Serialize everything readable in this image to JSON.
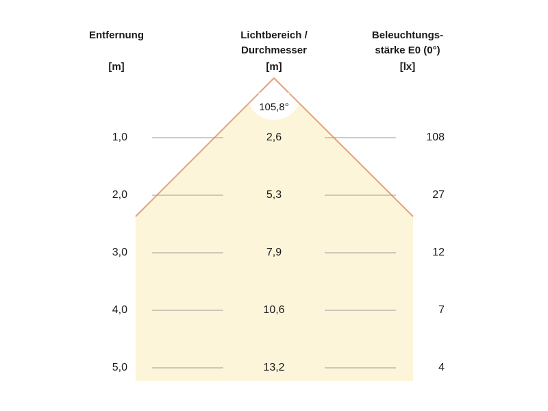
{
  "headers": {
    "distance": {
      "line1": "Entfernung",
      "unit": "[m]"
    },
    "diameter": {
      "line1": "Lichtbereich /",
      "line2": "Durchmesser",
      "unit": "[m]"
    },
    "illuminance": {
      "line1": "Beleuchtungs-",
      "line2": "stärke E0 (0°)",
      "unit": "[lx]"
    }
  },
  "beam_angle": "105,8°",
  "rows": [
    {
      "distance": "1,0",
      "diameter": "2,6",
      "illuminance": "108"
    },
    {
      "distance": "2,0",
      "diameter": "5,3",
      "illuminance": "27"
    },
    {
      "distance": "3,0",
      "diameter": "7,9",
      "illuminance": "12"
    },
    {
      "distance": "4,0",
      "diameter": "10,6",
      "illuminance": "7"
    },
    {
      "distance": "5,0",
      "diameter": "13,2",
      "illuminance": "4"
    }
  ],
  "colors": {
    "cone_fill": "#fcf5da",
    "cone_edge": "#e0a27e",
    "guide_line": "#9a9a9a",
    "text": "#1a1a1a"
  }
}
